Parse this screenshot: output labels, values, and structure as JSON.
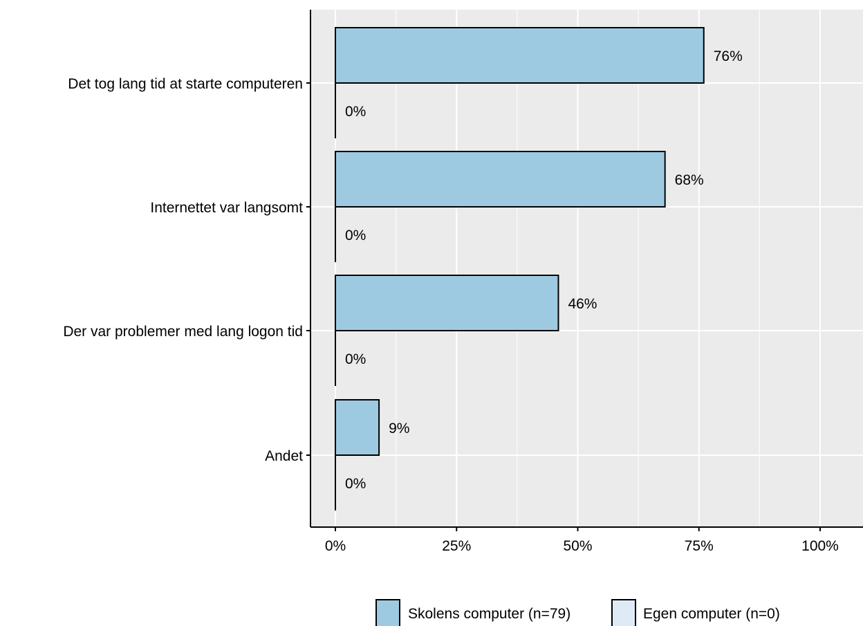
{
  "chart_data": {
    "type": "bar",
    "orientation": "horizontal",
    "categories": [
      "Det tog lang tid at starte computeren",
      "Internettet var langsomt",
      "Der var problemer med lang logon tid",
      "Andet"
    ],
    "series": [
      {
        "name": "Skolens computer (n=79)",
        "values": [
          76,
          68,
          46,
          9
        ],
        "labels": [
          "76%",
          "68%",
          "46%",
          "9%"
        ],
        "color": "#9ecae1"
      },
      {
        "name": "Egen computer (n=0)",
        "values": [
          0,
          0,
          0,
          0
        ],
        "labels": [
          "0%",
          "0%",
          "0%",
          "0%"
        ],
        "color": "#deebf7"
      }
    ],
    "xlim": [
      0,
      100
    ],
    "x_ticks": [
      0,
      25,
      50,
      75,
      100
    ],
    "x_tick_labels": [
      "0%",
      "25%",
      "50%",
      "75%",
      "100%"
    ],
    "title": "",
    "xlabel": "",
    "ylabel": "",
    "grid": true,
    "panel_background": "#ebebeb",
    "grid_color": "#ffffff",
    "bar_border_color": "#000000",
    "legend_position": "bottom"
  }
}
